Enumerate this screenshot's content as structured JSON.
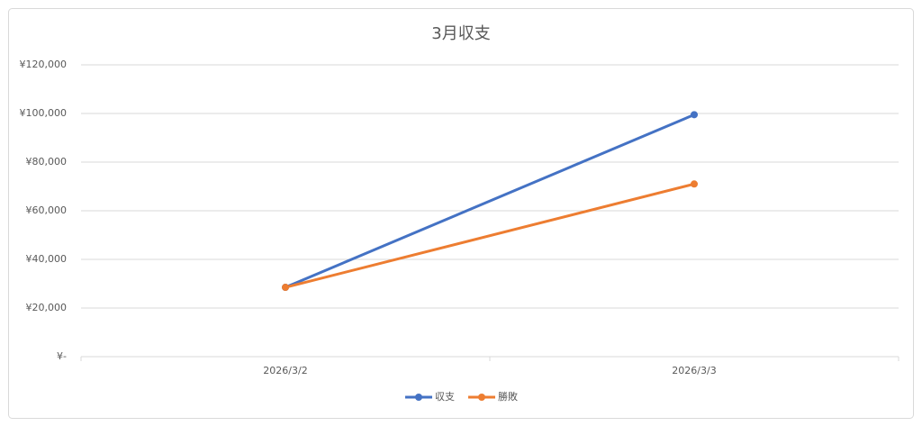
{
  "chart_data": {
    "type": "line",
    "title": "3月収支",
    "categories": [
      "2026/3/2",
      "2026/3/3"
    ],
    "series": [
      {
        "name": "収支",
        "color": "#4472c4",
        "values": [
          28500,
          99500
        ]
      },
      {
        "name": "勝敗",
        "color": "#ed7d31",
        "values": [
          28500,
          71000
        ]
      }
    ],
    "ylim": [
      0,
      120000
    ],
    "yticks": [
      {
        "value": 0,
        "label": "¥-"
      },
      {
        "value": 20000,
        "label": "¥20,000"
      },
      {
        "value": 40000,
        "label": "¥40,000"
      },
      {
        "value": 60000,
        "label": "¥60,000"
      },
      {
        "value": 80000,
        "label": "¥80,000"
      },
      {
        "value": 100000,
        "label": "¥100,000"
      },
      {
        "value": 120000,
        "label": "¥120,000"
      }
    ],
    "grid": true,
    "legend": "bottom"
  }
}
